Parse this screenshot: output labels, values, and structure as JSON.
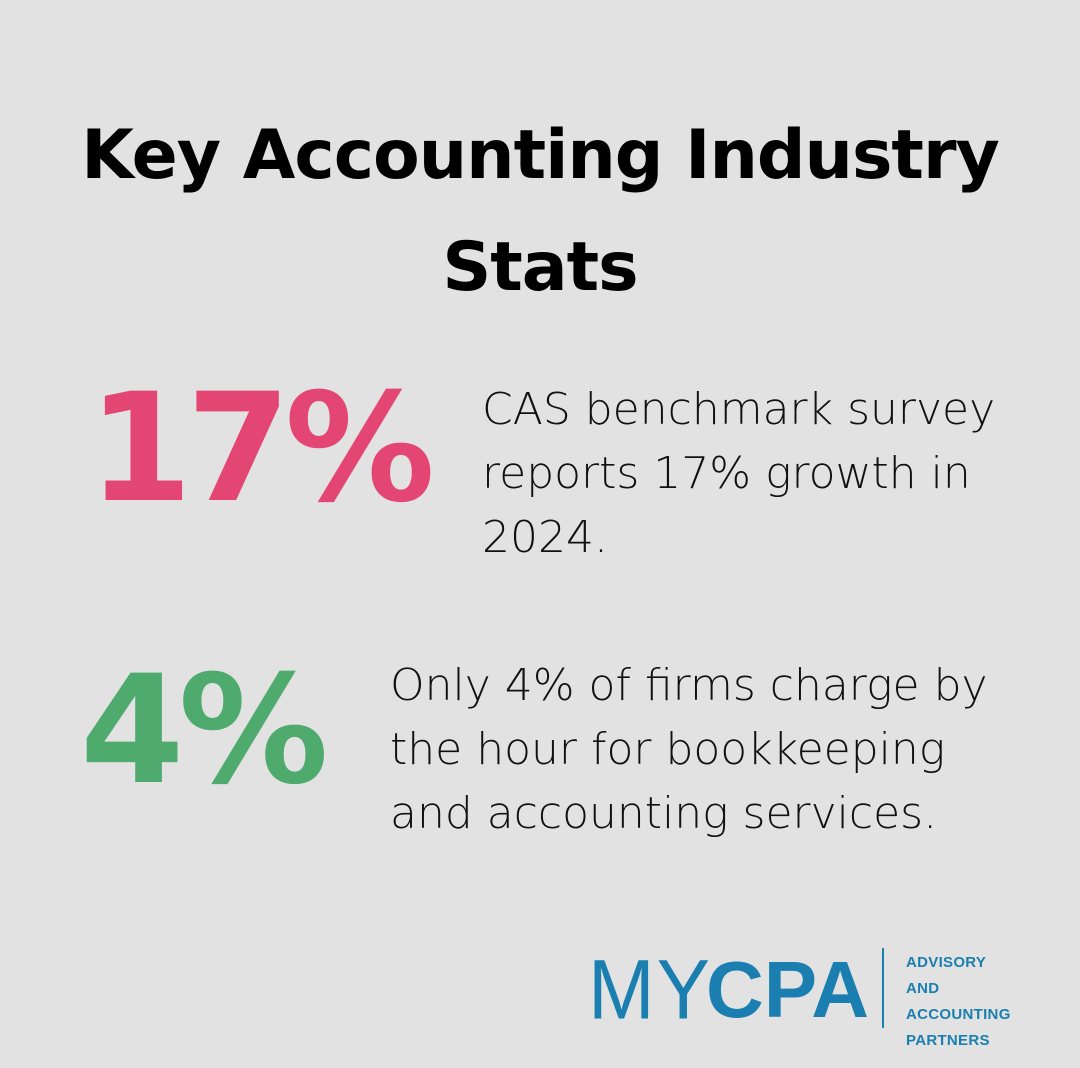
{
  "title": "Key Accounting Industry Stats",
  "stats": [
    {
      "value": "17%",
      "color": "#e44674",
      "lines": [
        "CAS benchmark survey",
        "reports 17% growth in",
        "2024."
      ]
    },
    {
      "value": "4%",
      "color": "#4faa6e",
      "lines": [
        "Only 4% of firms charge by",
        "the hour for bookkeeping",
        "and accounting services."
      ]
    }
  ],
  "logo": {
    "brand_light": "MY",
    "brand_bold": "CPA",
    "tagline": [
      "ADVISORY AND",
      "ACCOUNTING",
      "PARTNERS"
    ],
    "color": "#1a7fb0"
  }
}
